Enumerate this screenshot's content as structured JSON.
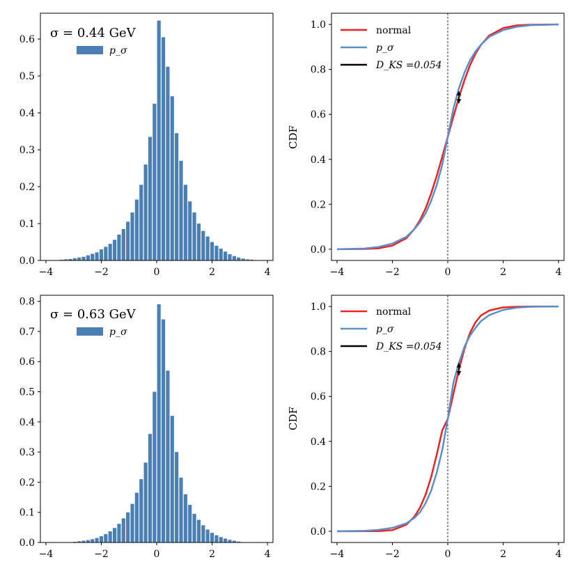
{
  "colors": {
    "bar": "#4a7fb5",
    "normal": "#ee2222",
    "p_sigma": "#5b8fc8",
    "dks": "#000000"
  },
  "chart_data": [
    {
      "id": "hist-top",
      "type": "bar",
      "annotation": "σ = 0.44 GeV",
      "legend": [
        "p_σ"
      ],
      "xlim": [
        -4.2,
        4.2
      ],
      "ylim": [
        0,
        0.67
      ],
      "xticks": [
        -4,
        -2,
        0,
        2,
        4
      ],
      "xtick_labels": [
        "−4",
        "−2",
        "0",
        "2",
        "4"
      ],
      "yticks": [
        0,
        0.1,
        0.2,
        0.3,
        0.4,
        0.5,
        0.6
      ],
      "ytick_labels": [
        "0.0",
        "0.1",
        "0.2",
        "0.3",
        "0.4",
        "0.5",
        "0.6"
      ],
      "bin_width": 0.16,
      "bins": [
        [
          -3.6,
          0.001
        ],
        [
          -3.44,
          0.002
        ],
        [
          -3.28,
          0.003
        ],
        [
          -3.12,
          0.004
        ],
        [
          -2.96,
          0.006
        ],
        [
          -2.8,
          0.008
        ],
        [
          -2.64,
          0.01
        ],
        [
          -2.48,
          0.014
        ],
        [
          -2.32,
          0.018
        ],
        [
          -2.16,
          0.022
        ],
        [
          -2.0,
          0.03
        ],
        [
          -1.84,
          0.037
        ],
        [
          -1.68,
          0.045
        ],
        [
          -1.52,
          0.056
        ],
        [
          -1.36,
          0.07
        ],
        [
          -1.2,
          0.085
        ],
        [
          -1.04,
          0.105
        ],
        [
          -0.88,
          0.13
        ],
        [
          -0.72,
          0.165
        ],
        [
          -0.56,
          0.205
        ],
        [
          -0.4,
          0.26
        ],
        [
          -0.24,
          0.335
        ],
        [
          -0.08,
          0.425
        ],
        [
          0.08,
          0.65
        ],
        [
          0.24,
          0.605
        ],
        [
          0.4,
          0.525
        ],
        [
          0.56,
          0.445
        ],
        [
          0.72,
          0.345
        ],
        [
          0.88,
          0.27
        ],
        [
          1.04,
          0.205
        ],
        [
          1.2,
          0.16
        ],
        [
          1.36,
          0.13
        ],
        [
          1.52,
          0.1
        ],
        [
          1.68,
          0.08
        ],
        [
          1.84,
          0.065
        ],
        [
          2.0,
          0.05
        ],
        [
          2.16,
          0.04
        ],
        [
          2.32,
          0.032
        ],
        [
          2.48,
          0.024
        ],
        [
          2.64,
          0.017
        ],
        [
          2.8,
          0.012
        ],
        [
          2.96,
          0.008
        ],
        [
          3.12,
          0.005
        ],
        [
          3.28,
          0.003
        ],
        [
          3.44,
          0.002
        ]
      ]
    },
    {
      "id": "cdf-top",
      "type": "line",
      "ylabel": "CDF",
      "xlim": [
        -4.2,
        4.2
      ],
      "ylim": [
        -0.05,
        1.05
      ],
      "xticks": [
        -4,
        -2,
        0,
        2,
        4
      ],
      "xtick_labels": [
        "−4",
        "−2",
        "0",
        "2",
        "4"
      ],
      "yticks": [
        0,
        0.2,
        0.4,
        0.6,
        0.8,
        1.0
      ],
      "ytick_labels": [
        "0.0",
        "0.2",
        "0.4",
        "0.6",
        "0.8",
        "1.0"
      ],
      "legend": [
        "normal",
        "p_σ",
        "D_KS =0.054"
      ],
      "dks": 0.054,
      "dks_x": 0.4,
      "dks_y": [
        0.649,
        0.703
      ],
      "series": [
        {
          "name": "normal",
          "x": [
            -4,
            -3,
            -2.5,
            -2,
            -1.5,
            -1.2,
            -1,
            -0.8,
            -0.6,
            -0.4,
            -0.2,
            0,
            0.2,
            0.4,
            0.6,
            0.8,
            1,
            1.2,
            1.5,
            2,
            2.5,
            3,
            4
          ],
          "y": [
            0,
            0.001,
            0.004,
            0.016,
            0.049,
            0.091,
            0.13,
            0.182,
            0.248,
            0.326,
            0.411,
            0.5,
            0.589,
            0.674,
            0.752,
            0.818,
            0.87,
            0.909,
            0.951,
            0.984,
            0.996,
            0.999,
            1.0
          ]
        },
        {
          "name": "p_σ",
          "x": [
            -4,
            -3,
            -2.5,
            -2,
            -1.5,
            -1.2,
            -1,
            -0.8,
            -0.6,
            -0.4,
            -0.2,
            0,
            0.2,
            0.4,
            0.6,
            0.8,
            1,
            1.2,
            1.5,
            2,
            2.5,
            3,
            4
          ],
          "y": [
            0,
            0.003,
            0.01,
            0.025,
            0.055,
            0.09,
            0.12,
            0.16,
            0.215,
            0.285,
            0.375,
            0.5,
            0.625,
            0.715,
            0.785,
            0.84,
            0.88,
            0.91,
            0.945,
            0.975,
            0.99,
            0.997,
            1.0
          ]
        }
      ]
    },
    {
      "id": "hist-bottom",
      "type": "bar",
      "annotation": "σ = 0.63 GeV",
      "legend": [
        "p_σ"
      ],
      "xlim": [
        -4.2,
        4.2
      ],
      "ylim": [
        0,
        0.82
      ],
      "xticks": [
        -4,
        -2,
        0,
        2,
        4
      ],
      "xtick_labels": [
        "−4",
        "−2",
        "0",
        "2",
        "4"
      ],
      "yticks": [
        0,
        0.1,
        0.2,
        0.3,
        0.4,
        0.5,
        0.6,
        0.7,
        0.8
      ],
      "ytick_labels": [
        "0.0",
        "0.1",
        "0.2",
        "0.3",
        "0.4",
        "0.5",
        "0.6",
        "0.7",
        "0.8"
      ],
      "bin_width": 0.16,
      "bins": [
        [
          -2.96,
          0.002
        ],
        [
          -2.8,
          0.004
        ],
        [
          -2.64,
          0.006
        ],
        [
          -2.48,
          0.008
        ],
        [
          -2.32,
          0.011
        ],
        [
          -2.16,
          0.015
        ],
        [
          -2.0,
          0.021
        ],
        [
          -1.84,
          0.028
        ],
        [
          -1.68,
          0.037
        ],
        [
          -1.52,
          0.048
        ],
        [
          -1.36,
          0.062
        ],
        [
          -1.2,
          0.08
        ],
        [
          -1.04,
          0.1
        ],
        [
          -0.88,
          0.128
        ],
        [
          -0.72,
          0.165
        ],
        [
          -0.56,
          0.21
        ],
        [
          -0.4,
          0.265
        ],
        [
          -0.24,
          0.36
        ],
        [
          -0.08,
          0.5
        ],
        [
          0.08,
          0.79
        ],
        [
          0.24,
          0.74
        ],
        [
          0.4,
          0.57
        ],
        [
          0.56,
          0.42
        ],
        [
          0.72,
          0.3
        ],
        [
          0.88,
          0.215
        ],
        [
          1.04,
          0.16
        ],
        [
          1.2,
          0.125
        ],
        [
          1.36,
          0.095
        ],
        [
          1.52,
          0.075
        ],
        [
          1.68,
          0.057
        ],
        [
          1.84,
          0.043
        ],
        [
          2.0,
          0.032
        ],
        [
          2.16,
          0.024
        ],
        [
          2.32,
          0.018
        ],
        [
          2.48,
          0.013
        ],
        [
          2.64,
          0.009
        ],
        [
          2.8,
          0.006
        ],
        [
          2.96,
          0.003
        ]
      ]
    },
    {
      "id": "cdf-bottom",
      "type": "line",
      "ylabel": "CDF",
      "xlim": [
        -4.2,
        4.2
      ],
      "ylim": [
        -0.05,
        1.05
      ],
      "xticks": [
        -4,
        -2,
        0,
        2,
        4
      ],
      "xtick_labels": [
        "−4",
        "−2",
        "0",
        "2",
        "4"
      ],
      "yticks": [
        0,
        0.2,
        0.4,
        0.6,
        0.8,
        1.0
      ],
      "ytick_labels": [
        "0.0",
        "0.2",
        "0.4",
        "0.6",
        "0.8",
        "1.0"
      ],
      "legend": [
        "normal",
        "p_σ",
        "D_KS =0.054"
      ],
      "dks": 0.054,
      "dks_x": 0.4,
      "dks_y": [
        0.694,
        0.748
      ],
      "series": [
        {
          "name": "normal",
          "x": [
            -4,
            -3,
            -2.5,
            -2,
            -1.5,
            -1.2,
            -1,
            -0.8,
            -0.6,
            -0.4,
            -0.2,
            0,
            0.2,
            0.4,
            0.6,
            0.8,
            1,
            1.2,
            1.5,
            2,
            2.5,
            3,
            4
          ],
          "y": [
            0,
            0.0001,
            0.0006,
            0.0048,
            0.029,
            0.066,
            0.106,
            0.163,
            0.241,
            0.34,
            0.448,
            0.5,
            0.61,
            0.718,
            0.811,
            0.882,
            0.93,
            0.96,
            0.982,
            0.996,
            0.999,
            1.0,
            1.0
          ]
        },
        {
          "name": "p_σ",
          "x": [
            -4,
            -3,
            -2.5,
            -2,
            -1.5,
            -1.2,
            -1,
            -0.8,
            -0.6,
            -0.4,
            -0.2,
            0,
            0.2,
            0.4,
            0.6,
            0.8,
            1,
            1.2,
            1.5,
            2,
            2.5,
            3,
            4
          ],
          "y": [
            0,
            0.002,
            0.006,
            0.015,
            0.035,
            0.06,
            0.085,
            0.125,
            0.18,
            0.26,
            0.36,
            0.5,
            0.66,
            0.748,
            0.82,
            0.87,
            0.905,
            0.935,
            0.962,
            0.985,
            0.995,
            0.999,
            1.0
          ]
        }
      ]
    }
  ]
}
